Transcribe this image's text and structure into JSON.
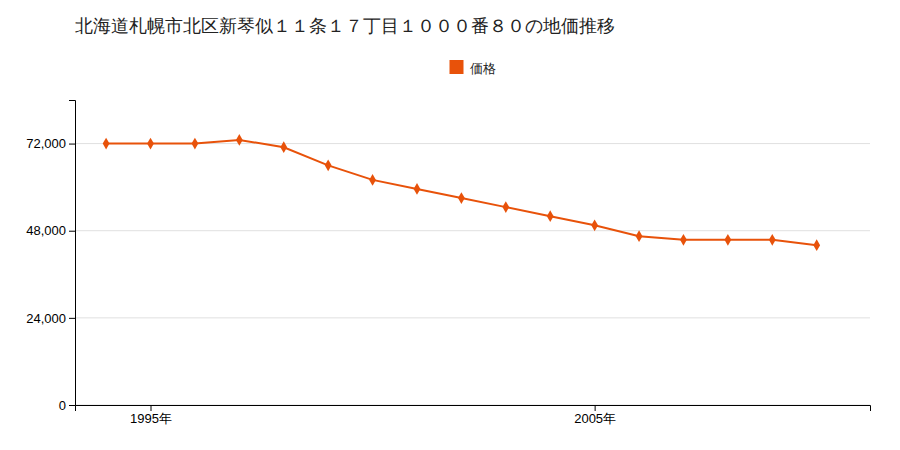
{
  "chart_data": {
    "type": "line",
    "title": "北海道札幌市北区新琴似１１条１７丁目１０００番８０の地価推移",
    "x": [
      1994,
      1995,
      1996,
      1997,
      1998,
      1999,
      2000,
      2001,
      2002,
      2003,
      2004,
      2005,
      2006,
      2007,
      2008,
      2009,
      2010
    ],
    "series": [
      {
        "name": "価格",
        "color": "#e8520a",
        "marker": "diamond",
        "values": [
          72000,
          72000,
          72000,
          73000,
          71000,
          66000,
          62000,
          59500,
          57000,
          54500,
          52000,
          49500,
          46500,
          45500,
          45500,
          45500,
          44000
        ]
      }
    ],
    "xlim": [
      1993.3,
      2011.2
    ],
    "xticks": [
      {
        "value": 1995,
        "label": "1995年"
      },
      {
        "value": 2005,
        "label": "2005年"
      }
    ],
    "ylim": [
      0,
      84000
    ],
    "yticks": [
      0,
      {
        "value": 24000,
        "label": "24,000"
      },
      {
        "value": 48000,
        "label": "48,000"
      },
      {
        "value": 72000,
        "label": "72,000"
      }
    ],
    "grid": "y",
    "legend": "top"
  }
}
